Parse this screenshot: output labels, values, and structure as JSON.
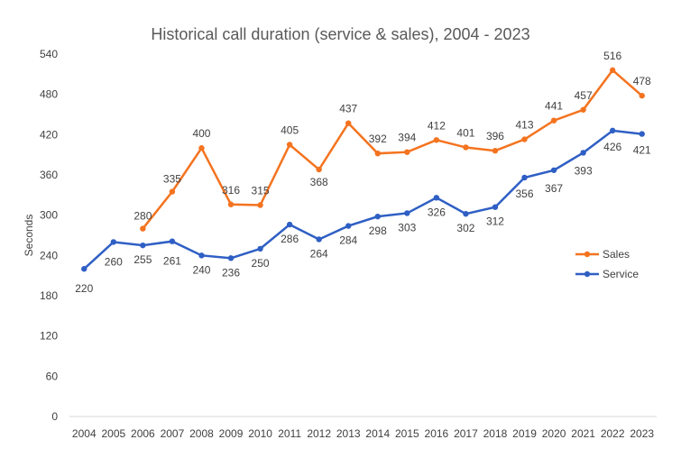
{
  "chart_data": {
    "type": "line",
    "title": "Historical call duration (service & sales), 2004 - 2023",
    "xlabel": "",
    "ylabel": "Seconds",
    "categories": [
      "2004",
      "2005",
      "2006",
      "2007",
      "2008",
      "2009",
      "2010",
      "2011",
      "2012",
      "2013",
      "2014",
      "2015",
      "2016",
      "2017",
      "2018",
      "2019",
      "2020",
      "2021",
      "2022",
      "2023"
    ],
    "ylim": [
      0,
      540
    ],
    "yticks": [
      0,
      60,
      120,
      180,
      240,
      300,
      360,
      420,
      480,
      540
    ],
    "grid": false,
    "legend_position": "right",
    "series": [
      {
        "name": "Sales",
        "color": "#f4731f",
        "values": [
          null,
          null,
          280,
          335,
          400,
          316,
          315,
          405,
          368,
          437,
          392,
          394,
          412,
          401,
          396,
          413,
          441,
          457,
          516,
          478
        ]
      },
      {
        "name": "Service",
        "color": "#2f5fc4",
        "values": [
          220,
          260,
          255,
          261,
          240,
          236,
          250,
          286,
          264,
          284,
          298,
          303,
          326,
          302,
          312,
          356,
          367,
          393,
          426,
          421
        ]
      }
    ]
  }
}
